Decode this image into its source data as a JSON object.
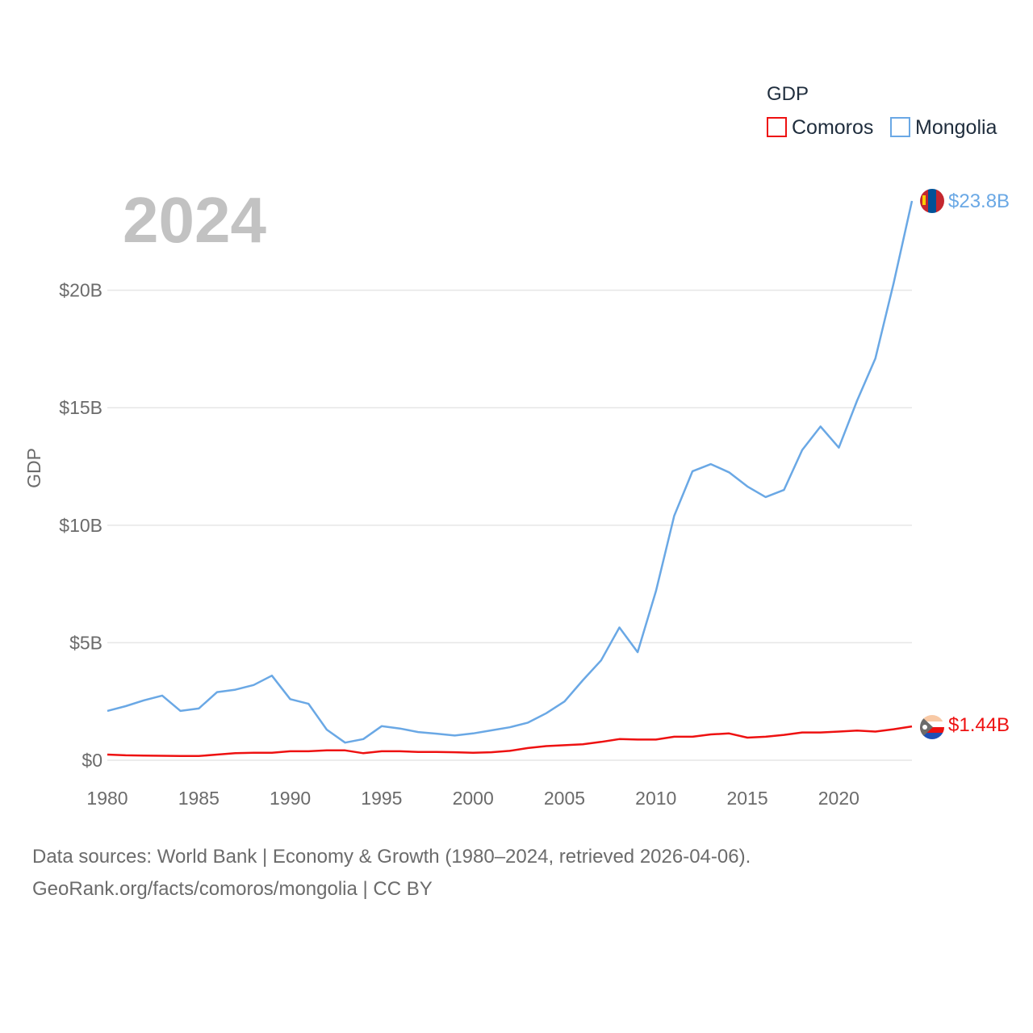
{
  "chart_data": {
    "type": "line",
    "year_label": "2024",
    "ylabel": "GDP",
    "legend_title": "GDP",
    "legend_position": "top-right",
    "xlim": [
      1980,
      2024
    ],
    "ylim": [
      0,
      23.8
    ],
    "x_ticks": [
      1980,
      1985,
      1990,
      1995,
      2000,
      2005,
      2010,
      2015,
      2020
    ],
    "x_tick_labels": [
      "1980",
      "1985",
      "1990",
      "1995",
      "2000",
      "2005",
      "2010",
      "2015",
      "2020"
    ],
    "y_ticks": [
      0,
      5,
      10,
      15,
      20
    ],
    "y_tick_labels": [
      "$0",
      "$5B",
      "$10B",
      "$15B",
      "$20B"
    ],
    "x": [
      1980,
      1981,
      1982,
      1983,
      1984,
      1985,
      1986,
      1987,
      1988,
      1989,
      1990,
      1991,
      1992,
      1993,
      1994,
      1995,
      1996,
      1997,
      1998,
      1999,
      2000,
      2001,
      2002,
      2003,
      2004,
      2005,
      2006,
      2007,
      2008,
      2009,
      2010,
      2011,
      2012,
      2013,
      2014,
      2015,
      2016,
      2017,
      2018,
      2019,
      2020,
      2021,
      2022,
      2023,
      2024
    ],
    "series": [
      {
        "name": "Comoros",
        "color": "#ee1111",
        "end_label": "$1.44B",
        "values": [
          0.24,
          0.21,
          0.2,
          0.19,
          0.18,
          0.18,
          0.24,
          0.3,
          0.32,
          0.32,
          0.38,
          0.38,
          0.42,
          0.42,
          0.3,
          0.38,
          0.38,
          0.35,
          0.35,
          0.34,
          0.32,
          0.34,
          0.4,
          0.52,
          0.6,
          0.64,
          0.68,
          0.78,
          0.9,
          0.88,
          0.88,
          1.0,
          1.0,
          1.1,
          1.14,
          0.96,
          1.0,
          1.08,
          1.18,
          1.18,
          1.22,
          1.26,
          1.22,
          1.32,
          1.44
        ]
      },
      {
        "name": "Mongolia",
        "color": "#6aa8e5",
        "end_label": "$23.8B",
        "values": [
          2.1,
          2.3,
          2.55,
          2.75,
          2.1,
          2.2,
          2.9,
          3.0,
          3.2,
          3.6,
          2.6,
          2.4,
          1.3,
          0.75,
          0.9,
          1.45,
          1.35,
          1.2,
          1.13,
          1.05,
          1.14,
          1.27,
          1.4,
          1.6,
          2.0,
          2.5,
          3.4,
          4.25,
          5.65,
          4.6,
          7.2,
          10.4,
          12.3,
          12.6,
          12.25,
          11.65,
          11.2,
          11.5,
          13.2,
          14.2,
          13.3,
          15.3,
          17.1,
          20.3,
          23.8
        ]
      }
    ]
  },
  "footer": {
    "line1": "Data sources: World Bank | Economy & Growth (1980–2024, retrieved 2026-04-06).",
    "line2": "GeoRank.org/facts/comoros/mongolia | CC BY"
  },
  "flags": {
    "comoros": {
      "colors": [
        "#f8c9a5",
        "#ffffff",
        "#ee1111",
        "#1f4fb5",
        "#3a8a3a"
      ]
    },
    "mongolia": {
      "colors": [
        "#c4272f",
        "#015197",
        "#f9cf02"
      ]
    }
  }
}
